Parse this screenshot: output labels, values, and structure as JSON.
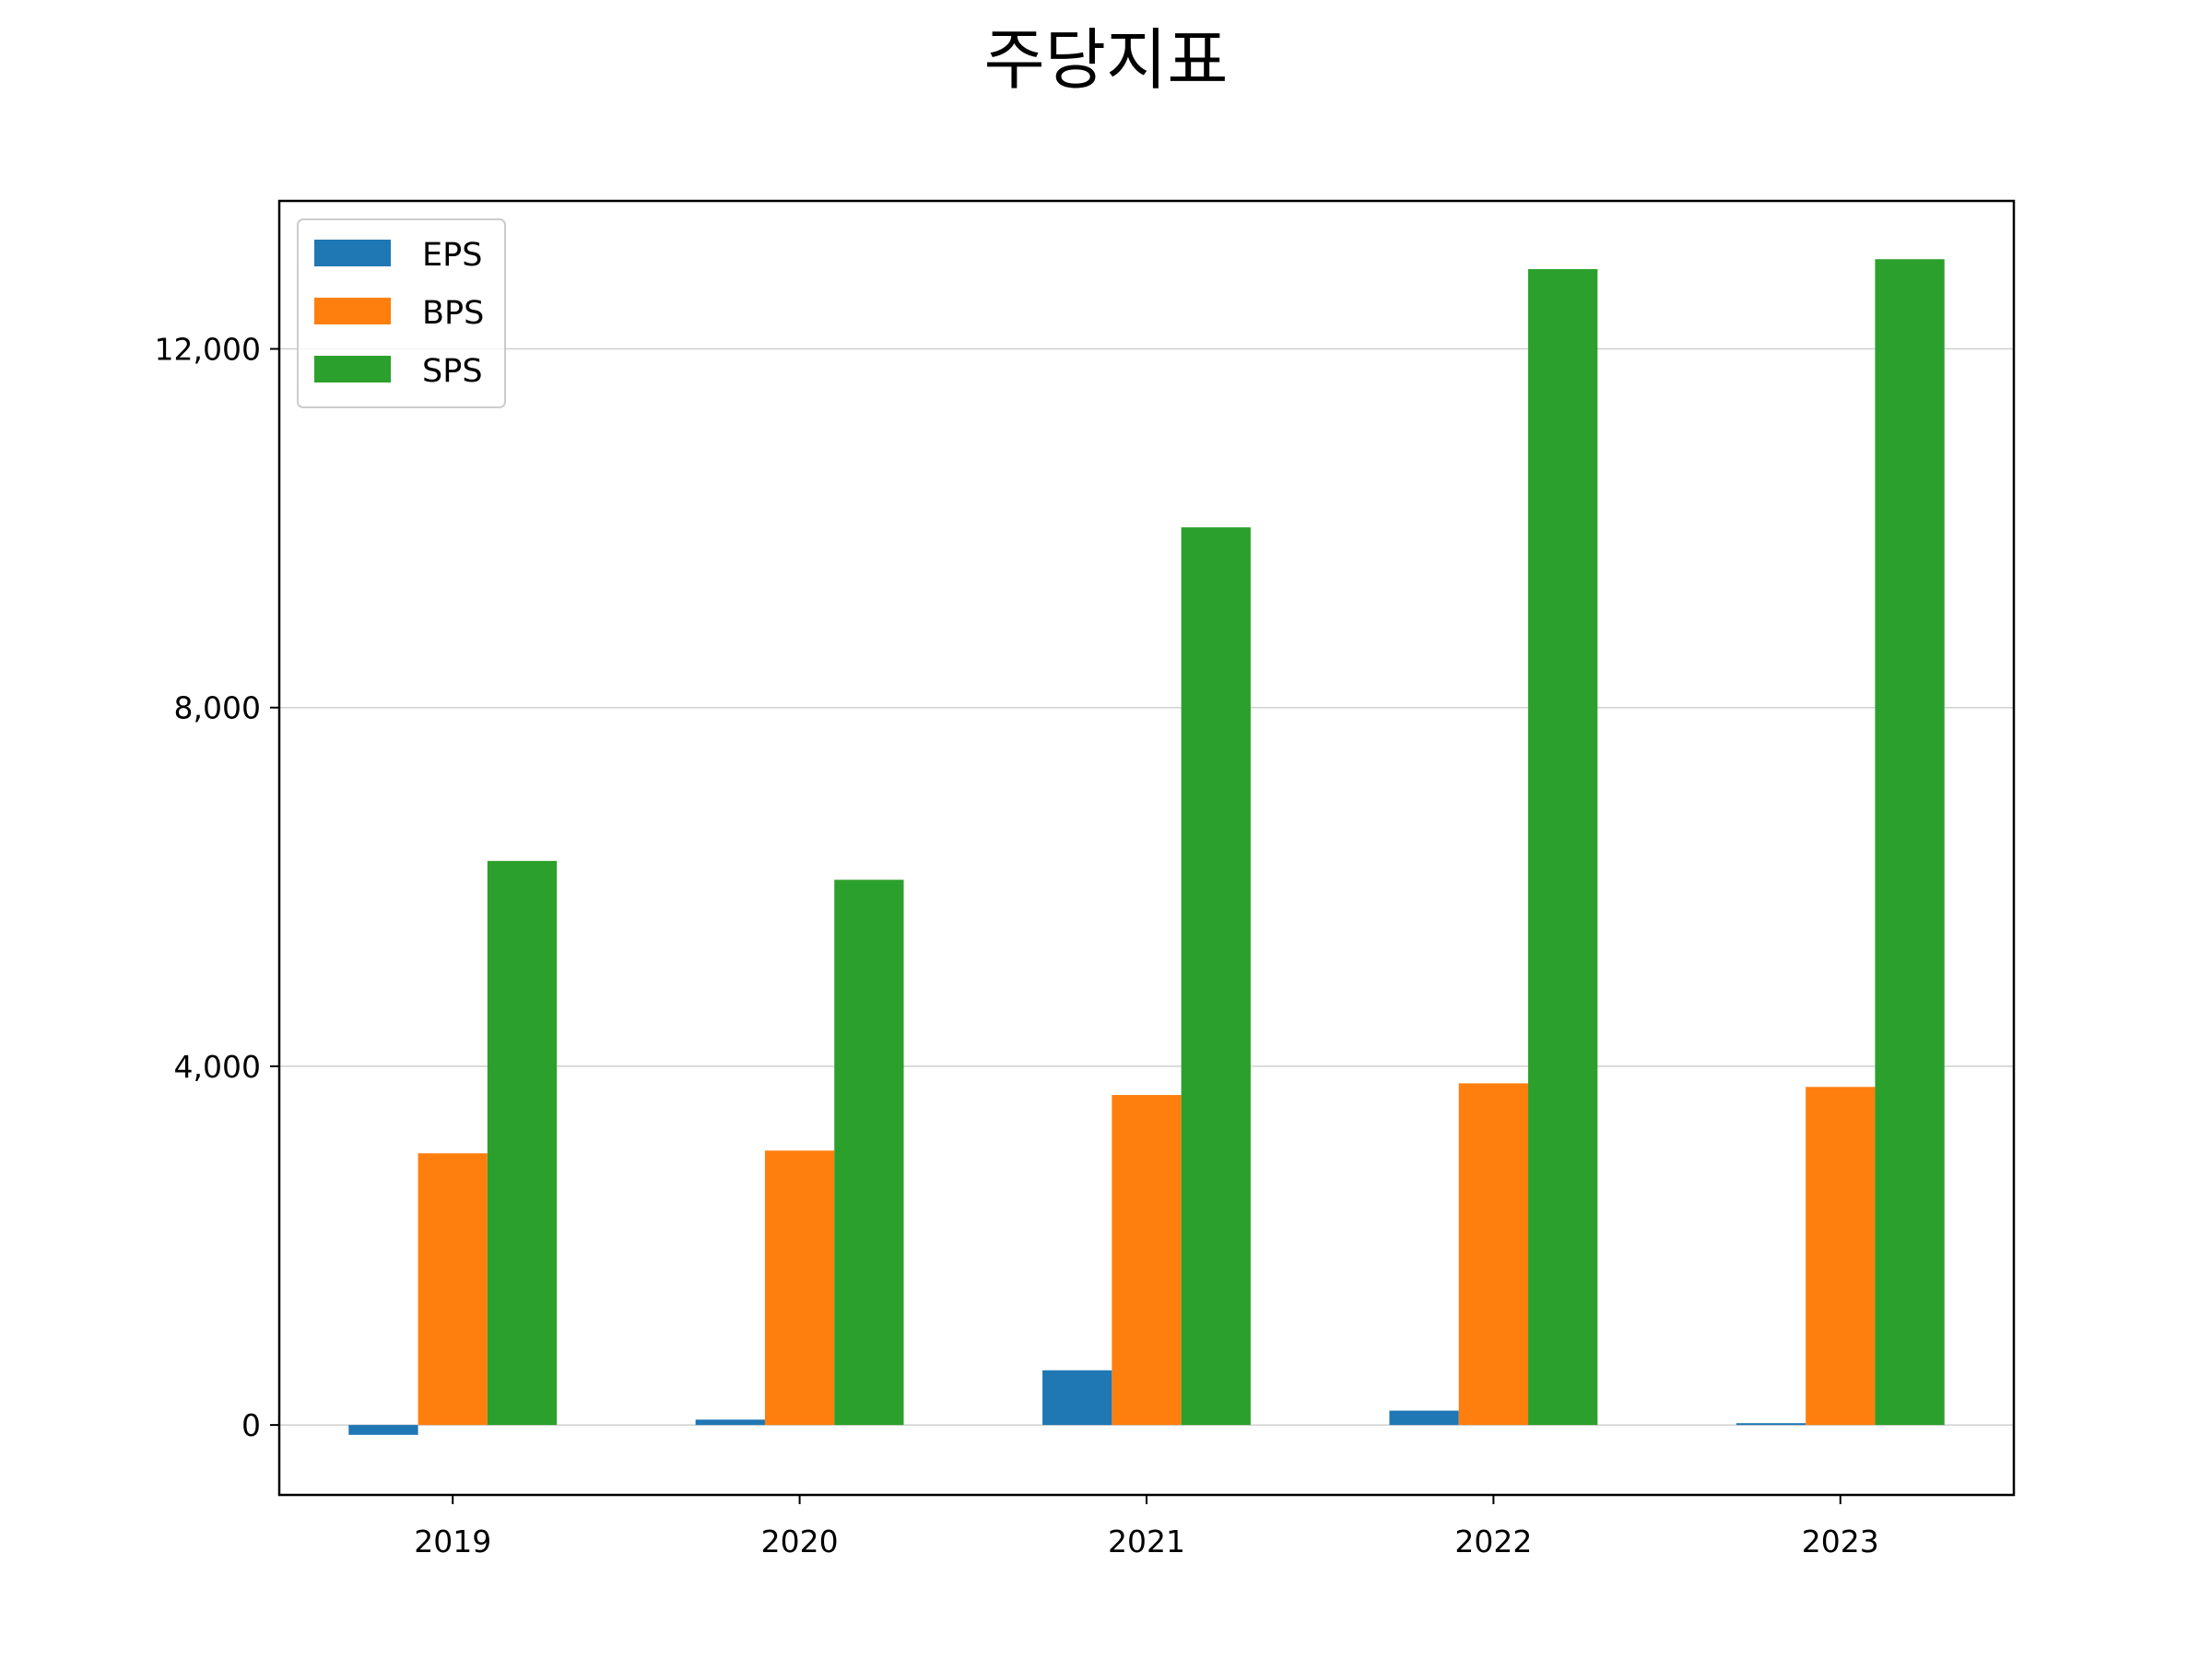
{
  "chart_data": {
    "type": "bar",
    "title": "주당지표",
    "xlabel": "",
    "ylabel": "",
    "categories": [
      "2019",
      "2020",
      "2021",
      "2022",
      "2023"
    ],
    "series": [
      {
        "name": "EPS",
        "color": "#1f77b4",
        "values": [
          -110,
          60,
          610,
          160,
          20
        ]
      },
      {
        "name": "BPS",
        "color": "#ff7f0e",
        "values": [
          3030,
          3060,
          3680,
          3810,
          3770
        ]
      },
      {
        "name": "SPS",
        "color": "#2ca02c",
        "values": [
          6290,
          6080,
          10010,
          12890,
          13000
        ]
      }
    ],
    "ylim": [
      -780,
      13650
    ],
    "yticks": [
      0,
      4000,
      8000,
      12000
    ],
    "ytick_labels": [
      "0",
      "4,000",
      "8,000",
      "12,000"
    ],
    "grid": "y",
    "legend_position": "top-left"
  }
}
